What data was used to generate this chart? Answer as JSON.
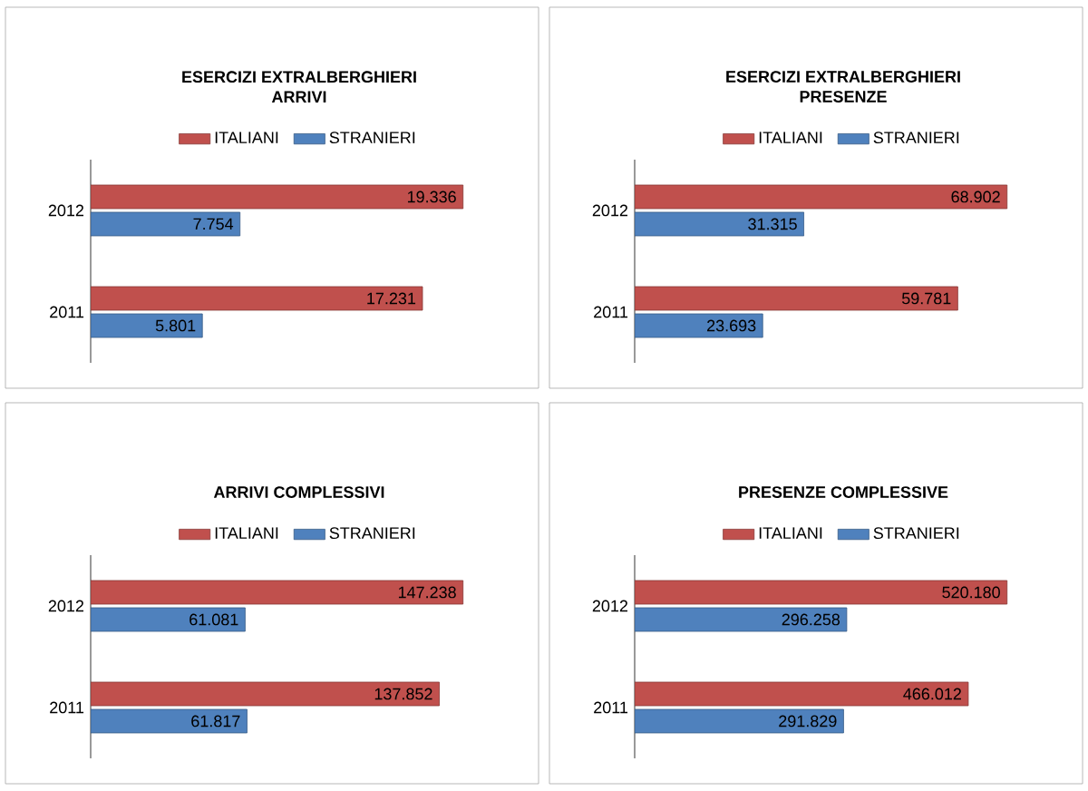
{
  "chart_data": [
    {
      "type": "bar",
      "orientation": "horizontal",
      "title": "ESERCIZI EXTRALBERGHIERI",
      "subtitle": "ARRIVI",
      "categories": [
        "2012",
        "2011"
      ],
      "legend": "top",
      "series": [
        {
          "name": "ITALIANI",
          "color": "#c0504d",
          "values": [
            19336,
            17231
          ],
          "value_labels": [
            "19.336",
            "17.231"
          ]
        },
        {
          "name": "STRANIERI",
          "color": "#4f81bd",
          "values": [
            7754,
            5801
          ],
          "value_labels": [
            "7.754",
            "5.801"
          ]
        }
      ]
    },
    {
      "type": "bar",
      "orientation": "horizontal",
      "title": "ESERCIZI EXTRALBERGHIERI",
      "subtitle": "PRESENZE",
      "categories": [
        "2012",
        "2011"
      ],
      "legend": "top",
      "series": [
        {
          "name": "ITALIANI",
          "color": "#c0504d",
          "values": [
            68902,
            59781
          ],
          "value_labels": [
            "68.902",
            "59.781"
          ]
        },
        {
          "name": "STRANIERI",
          "color": "#4f81bd",
          "values": [
            31315,
            23693
          ],
          "value_labels": [
            "31.315",
            "23.693"
          ]
        }
      ]
    },
    {
      "type": "bar",
      "orientation": "horizontal",
      "title": "ARRIVI COMPLESSIVI",
      "categories": [
        "2012",
        "2011"
      ],
      "legend": "top",
      "series": [
        {
          "name": "ITALIANI",
          "color": "#c0504d",
          "values": [
            147238,
            137852
          ],
          "value_labels": [
            "147.238",
            "137.852"
          ]
        },
        {
          "name": "STRANIERI",
          "color": "#4f81bd",
          "values": [
            61081,
            61817
          ],
          "value_labels": [
            "61.081",
            "61.817"
          ]
        }
      ]
    },
    {
      "type": "bar",
      "orientation": "horizontal",
      "title": "PRESENZE COMPLESSIVE",
      "categories": [
        "2012",
        "2011"
      ],
      "legend": "top",
      "series": [
        {
          "name": "ITALIANI",
          "color": "#c0504d",
          "values": [
            520180,
            466012
          ],
          "value_labels": [
            "520.180",
            "466.012"
          ]
        },
        {
          "name": "STRANIERI",
          "color": "#4f81bd",
          "values": [
            296258,
            291829
          ],
          "value_labels": [
            "296.258",
            "291.829"
          ]
        }
      ]
    }
  ]
}
